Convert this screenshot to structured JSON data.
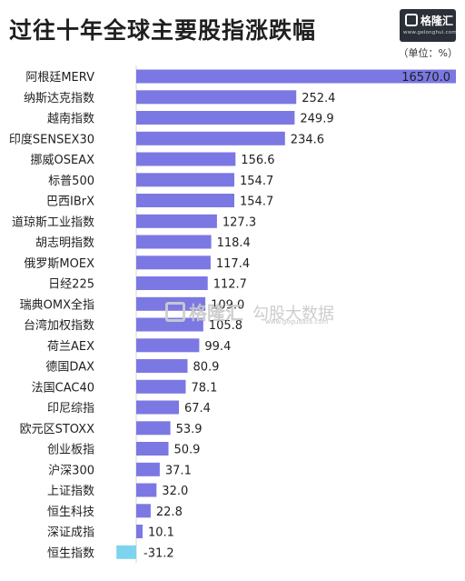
{
  "title": "过往十年全球主要股指涨跌幅",
  "unit": "（单位：%）",
  "logo": {
    "name": "格隆汇",
    "url": "www.gelonghui.com",
    "icon": "gelonghui-logo-icon"
  },
  "watermark": {
    "name": "格隆汇",
    "sub": "勾股大数据",
    "url": "www.gogudata.com"
  },
  "colors": {
    "positive": "#7b78e3",
    "negative": "#7ed4ef"
  },
  "chart_data": {
    "type": "bar",
    "orientation": "horizontal",
    "title": "过往十年全球主要股指涨跌幅",
    "unit": "（单位：%）",
    "categories": [
      "阿根廷MERV",
      "纳斯达克指数",
      "越南指数",
      "印度SENSEX30",
      "挪威OSEAX",
      "标普500",
      "巴西IBrX",
      "道琼斯工业指数",
      "胡志明指数",
      "俄罗斯MOEX",
      "日经225",
      "瑞典OMX全指",
      "台湾加权指数",
      "荷兰AEX",
      "德国DAX",
      "法国CAC40",
      "印尼综指",
      "欧元区STOXX",
      "创业板指",
      "沪深300",
      "上证指数",
      "恒生科技",
      "深证成指",
      "恒生指数"
    ],
    "values": [
      16570.0,
      252.4,
      249.9,
      234.6,
      156.6,
      154.7,
      154.7,
      127.3,
      118.4,
      117.4,
      112.7,
      109.0,
      105.8,
      99.4,
      80.9,
      78.1,
      67.4,
      53.9,
      50.9,
      37.1,
      32.0,
      22.8,
      10.1,
      -31.2
    ],
    "value_labels": [
      "16570.0",
      "252.4",
      "249.9",
      "234.6",
      "156.6",
      "154.7",
      "154.7",
      "127.3",
      "118.4",
      "117.4",
      "112.7",
      "109.0",
      "105.8",
      "99.4",
      "80.9",
      "78.1",
      "67.4",
      "53.9",
      "50.9",
      "37.1",
      "32.0",
      "22.8",
      "10.1",
      "-31.2"
    ],
    "axis_break": "first bar is truncated (broken scale)",
    "grid": false,
    "legend": "none"
  }
}
